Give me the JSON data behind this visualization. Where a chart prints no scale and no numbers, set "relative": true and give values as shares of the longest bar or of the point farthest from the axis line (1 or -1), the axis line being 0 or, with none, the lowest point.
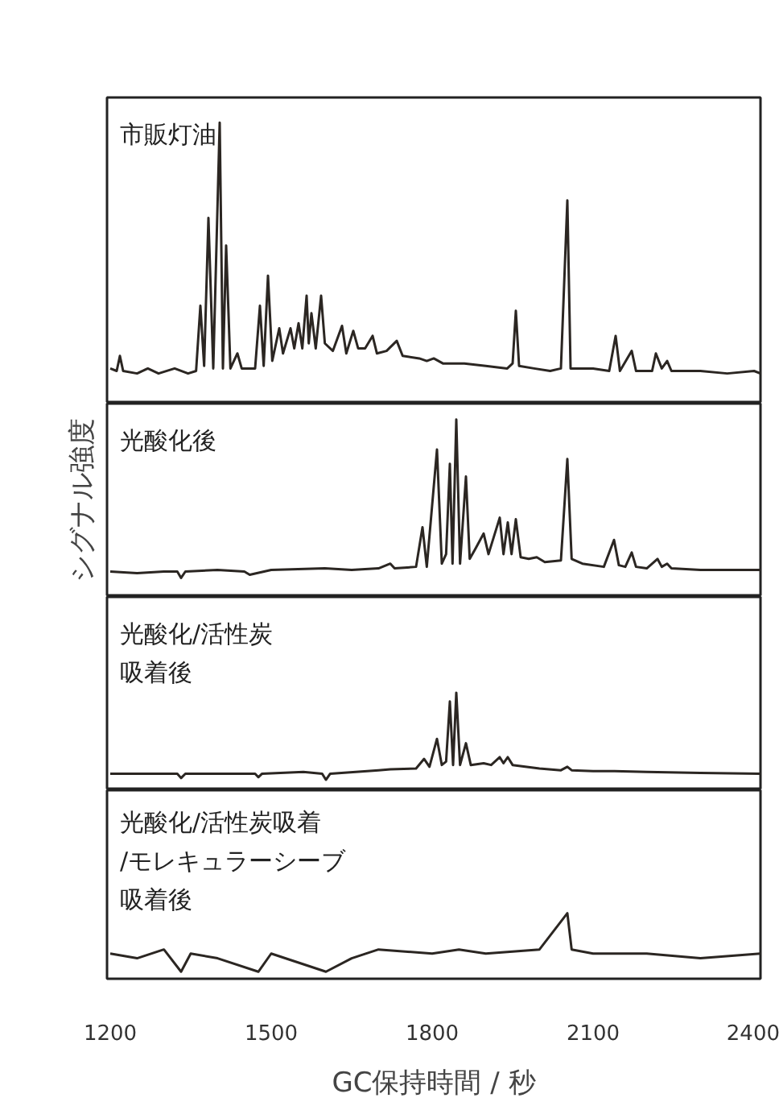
{
  "chart_data": [
    {
      "type": "line",
      "relative": true,
      "title": "市販灯油",
      "xlim": [
        1194,
        2412
      ],
      "tick_labels": false,
      "series": [
        {
          "color": "#2b2622",
          "x": [
            1200,
            1212,
            1218,
            1224,
            1250,
            1270,
            1290,
            1320,
            1345,
            1360,
            1368,
            1375,
            1383,
            1392,
            1404,
            1410,
            1416,
            1424,
            1437,
            1445,
            1470,
            1479,
            1486,
            1494,
            1502,
            1515,
            1522,
            1536,
            1543,
            1551,
            1558,
            1566,
            1570,
            1575,
            1583,
            1593,
            1600,
            1615,
            1632,
            1640,
            1653,
            1662,
            1675,
            1689,
            1697,
            1715,
            1734,
            1745,
            1776,
            1790,
            1803,
            1820,
            1860,
            1900,
            1940,
            1950,
            1956,
            1962,
            1990,
            2020,
            2040,
            2052,
            2058,
            2080,
            2100,
            2130,
            2142,
            2150,
            2172,
            2180,
            2210,
            2217,
            2228,
            2238,
            2246,
            2300,
            2350,
            2400,
            2412
          ],
          "values": [
            0.02,
            0.01,
            0.07,
            0.01,
            0.0,
            0.02,
            0.0,
            0.02,
            0.0,
            0.01,
            0.27,
            0.03,
            0.62,
            0.02,
            1.0,
            0.02,
            0.51,
            0.02,
            0.08,
            0.02,
            0.02,
            0.27,
            0.03,
            0.39,
            0.05,
            0.18,
            0.08,
            0.18,
            0.1,
            0.2,
            0.1,
            0.31,
            0.12,
            0.24,
            0.1,
            0.31,
            0.12,
            0.09,
            0.19,
            0.08,
            0.17,
            0.1,
            0.1,
            0.15,
            0.08,
            0.09,
            0.13,
            0.07,
            0.06,
            0.05,
            0.06,
            0.04,
            0.04,
            0.03,
            0.02,
            0.04,
            0.25,
            0.03,
            0.02,
            0.01,
            0.02,
            0.69,
            0.02,
            0.02,
            0.02,
            0.01,
            0.15,
            0.01,
            0.09,
            0.01,
            0.01,
            0.08,
            0.02,
            0.05,
            0.01,
            0.01,
            0.0,
            0.01,
            0.0
          ]
        }
      ]
    },
    {
      "type": "line",
      "relative": true,
      "title": "光酸化後",
      "ylabel": "シグナル強度",
      "xlim": [
        1194,
        2412
      ],
      "tick_labels": false,
      "series": [
        {
          "color": "#2b2622",
          "x": [
            1200,
            1250,
            1300,
            1325,
            1332,
            1340,
            1400,
            1450,
            1460,
            1500,
            1600,
            1650,
            1700,
            1722,
            1730,
            1770,
            1782,
            1790,
            1809,
            1818,
            1826,
            1833,
            1838,
            1845,
            1852,
            1863,
            1870,
            1880,
            1896,
            1905,
            1926,
            1933,
            1941,
            1948,
            1956,
            1965,
            1980,
            1995,
            2010,
            2040,
            2052,
            2060,
            2080,
            2120,
            2139,
            2148,
            2160,
            2172,
            2180,
            2200,
            2220,
            2228,
            2238,
            2246,
            2300,
            2350,
            2412
          ],
          "values": [
            0.04,
            0.03,
            0.04,
            0.04,
            0.0,
            0.04,
            0.05,
            0.04,
            0.02,
            0.05,
            0.06,
            0.05,
            0.06,
            0.09,
            0.06,
            0.07,
            0.32,
            0.07,
            0.81,
            0.09,
            0.15,
            0.72,
            0.09,
            1.0,
            0.09,
            0.64,
            0.12,
            0.18,
            0.28,
            0.15,
            0.38,
            0.15,
            0.35,
            0.15,
            0.37,
            0.13,
            0.12,
            0.13,
            0.1,
            0.11,
            0.75,
            0.12,
            0.09,
            0.07,
            0.24,
            0.08,
            0.07,
            0.16,
            0.07,
            0.06,
            0.12,
            0.07,
            0.09,
            0.06,
            0.05,
            0.05,
            0.05
          ]
        }
      ]
    },
    {
      "type": "line",
      "relative": true,
      "title": "光酸化/活性炭吸着後",
      "xlim": [
        1194,
        2412
      ],
      "tick_labels": false,
      "series": [
        {
          "color": "#2b2622",
          "x": [
            1200,
            1300,
            1325,
            1332,
            1340,
            1400,
            1470,
            1476,
            1483,
            1560,
            1595,
            1602,
            1610,
            1700,
            1722,
            1770,
            1785,
            1795,
            1809,
            1818,
            1826,
            1833,
            1839,
            1845,
            1852,
            1863,
            1872,
            1896,
            1910,
            1926,
            1933,
            1941,
            1950,
            2000,
            2040,
            2052,
            2060,
            2100,
            2140,
            2200,
            2300,
            2412
          ],
          "values": [
            0.07,
            0.07,
            0.07,
            0.02,
            0.07,
            0.07,
            0.07,
            0.03,
            0.07,
            0.09,
            0.07,
            0.0,
            0.07,
            0.11,
            0.12,
            0.13,
            0.24,
            0.15,
            0.47,
            0.17,
            0.21,
            0.9,
            0.17,
            1.0,
            0.17,
            0.42,
            0.17,
            0.19,
            0.17,
            0.26,
            0.19,
            0.26,
            0.17,
            0.13,
            0.11,
            0.15,
            0.11,
            0.1,
            0.1,
            0.09,
            0.08,
            0.07
          ]
        }
      ]
    },
    {
      "type": "line",
      "relative": true,
      "title": "光酸化/活性炭吸着/モレキュラーシーブ吸着後",
      "xlabel": "GC保持時間 / 秒",
      "xlim": [
        1194,
        2412
      ],
      "xticks": [
        1200,
        1500,
        1800,
        2100,
        2400
      ],
      "tick_labels": "x",
      "series": [
        {
          "color": "#2b2622",
          "x": [
            1200,
            1250,
            1300,
            1332,
            1350,
            1400,
            1476,
            1500,
            1602,
            1650,
            1700,
            1800,
            1850,
            1900,
            2000,
            2052,
            2060,
            2100,
            2200,
            2300,
            2412
          ],
          "values": [
            0.31,
            0.23,
            0.38,
            0.0,
            0.31,
            0.23,
            0.0,
            0.31,
            0.0,
            0.23,
            0.38,
            0.31,
            0.38,
            0.31,
            0.38,
            1.0,
            0.38,
            0.31,
            0.31,
            0.23,
            0.31
          ]
        }
      ]
    }
  ]
}
